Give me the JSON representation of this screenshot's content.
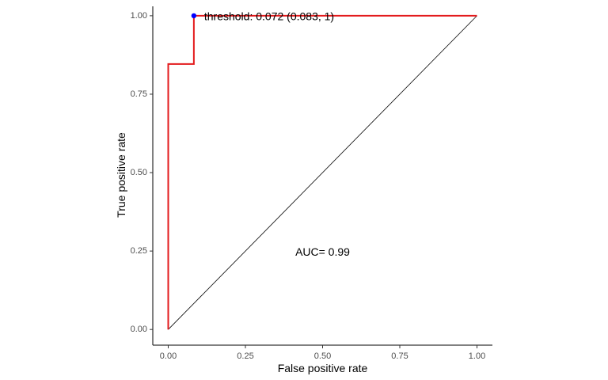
{
  "chart_data": {
    "type": "line",
    "xlabel": "False positive rate",
    "ylabel": "True positive rate",
    "xlim": [
      -0.05,
      1.05
    ],
    "ylim": [
      -0.05,
      1.03
    ],
    "xticks": [
      0,
      0.25,
      0.5,
      0.75,
      1
    ],
    "yticks": [
      0,
      0.25,
      0.5,
      0.75,
      1
    ],
    "x_tick_labels": [
      "0.00",
      "0.25",
      "0.50",
      "0.75",
      "1.00"
    ],
    "y_tick_labels": [
      "0.00",
      "0.25",
      "0.50",
      "0.75",
      "1.00"
    ],
    "grid": false,
    "series": [
      {
        "type": "step",
        "color": "#e31a1c",
        "x": [
          0,
          0,
          0.083,
          0.083,
          1
        ],
        "y": [
          0,
          0.846,
          0.846,
          1,
          1
        ]
      },
      {
        "type": "reference",
        "color": "#000000",
        "x": [
          0,
          1
        ],
        "y": [
          0,
          1
        ]
      }
    ],
    "threshold_point": {
      "x": 0.083,
      "y": 1,
      "color": "#0000ff",
      "label": "threshold: 0.072 (0.083, 1)"
    },
    "auc_annotation": {
      "text": "AUC= 0.99",
      "x": 0.5,
      "y": 0.25
    }
  }
}
